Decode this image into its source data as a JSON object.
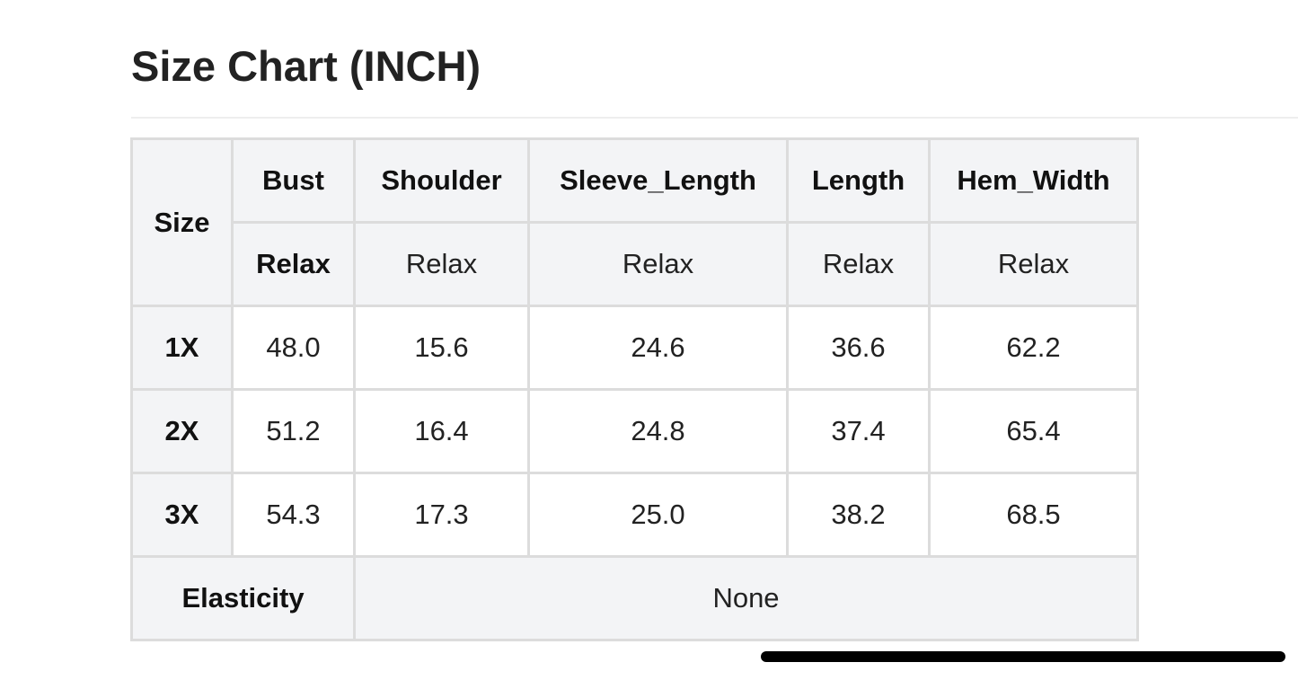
{
  "title": "Size Chart (INCH)",
  "table": {
    "size_header": "Size",
    "columns": [
      "Bust",
      "Shoulder",
      "Sleeve_Length",
      "Length",
      "Hem_Width"
    ],
    "subheaders": [
      "Relax",
      "Relax",
      "Relax",
      "Relax",
      "Relax"
    ],
    "rows": [
      {
        "size": "1X",
        "values": [
          "48.0",
          "15.6",
          "24.6",
          "36.6",
          "62.2"
        ]
      },
      {
        "size": "2X",
        "values": [
          "51.2",
          "16.4",
          "24.8",
          "37.4",
          "65.4"
        ]
      },
      {
        "size": "3X",
        "values": [
          "54.3",
          "17.3",
          "25.0",
          "38.2",
          "68.5"
        ]
      }
    ],
    "elasticity_label": "Elasticity",
    "elasticity_value": "None"
  },
  "colors": {
    "header_bg": "#f3f4f6",
    "border": "#dcdcdc"
  }
}
